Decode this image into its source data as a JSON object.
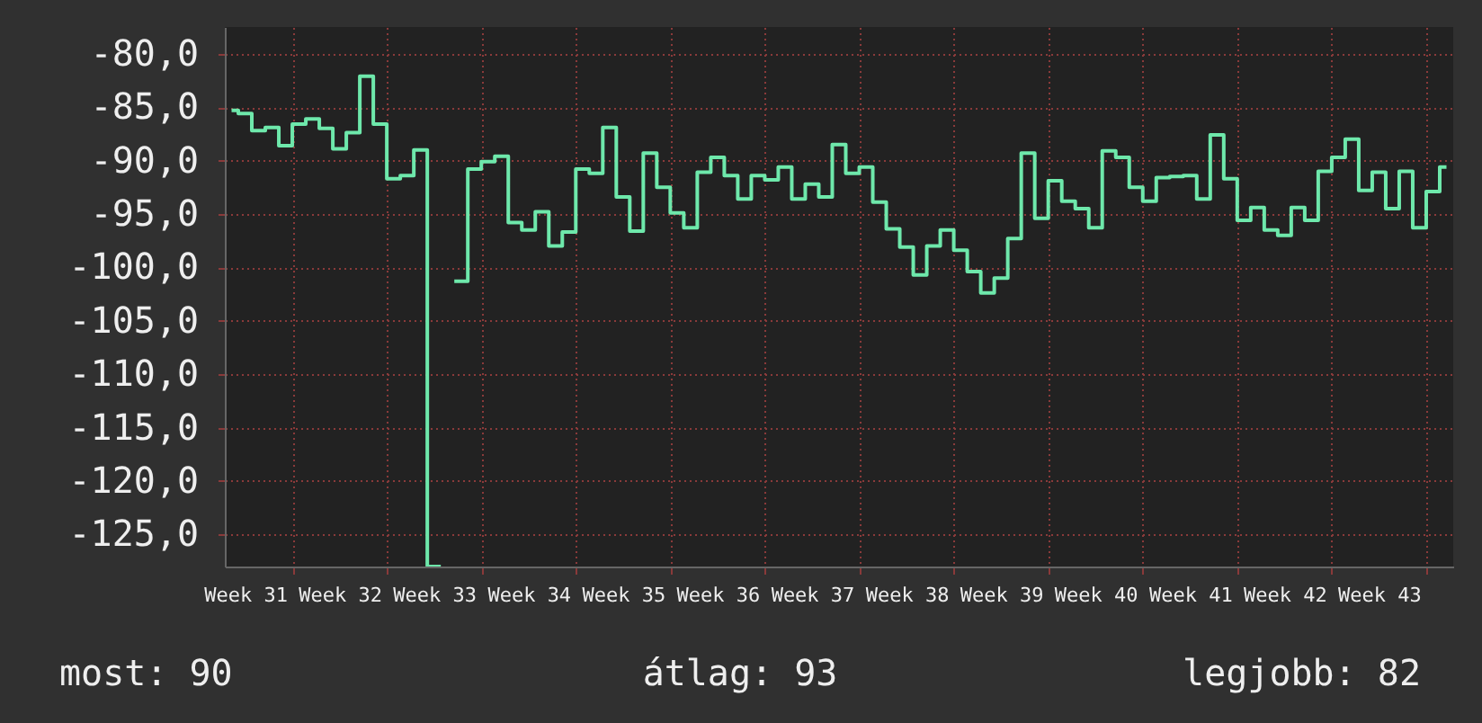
{
  "chart_data": {
    "type": "step",
    "categories": [
      null,
      "Week 31",
      null,
      null,
      null,
      null,
      null,
      null,
      "Week 32",
      null,
      null,
      null,
      null,
      null,
      null,
      "Week 33",
      null,
      null,
      null,
      null,
      null,
      null,
      "Week 34",
      null,
      null,
      null,
      null,
      null,
      null,
      "Week 35",
      null,
      null,
      null,
      null,
      null,
      null,
      "Week 36",
      null,
      null,
      null,
      null,
      null,
      null,
      "Week 37",
      null,
      null,
      null,
      null,
      null,
      null,
      "Week 38",
      null,
      null,
      null,
      null,
      null,
      null,
      "Week 39",
      null,
      null,
      null,
      null,
      null,
      null,
      "Week 40",
      null,
      null,
      null,
      null,
      null,
      null,
      "Week 41",
      null,
      null,
      null,
      null,
      null,
      null,
      "Week 42",
      null,
      null,
      null,
      null,
      null,
      null,
      "Week 43",
      null,
      null,
      null,
      null,
      null
    ],
    "series": [
      {
        "color": "#6ee8ab",
        "values": [
          -85.3,
          -85.6,
          -87.2,
          -86.9,
          -88.6,
          -86.6,
          -86.1,
          -87.0,
          -88.9,
          -87.4,
          -82.1,
          -86.6,
          -91.7,
          -91.4,
          -89.0,
          -128,
          null,
          -101.3,
          -90.8,
          -90.1,
          -89.6,
          -95.8,
          -96.5,
          -94.8,
          -98.0,
          -96.7,
          -90.8,
          -91.2,
          -86.9,
          -93.4,
          -96.6,
          -89.3,
          -92.5,
          -94.9,
          -96.3,
          -91.1,
          -89.7,
          -91.4,
          -93.6,
          -91.4,
          -91.8,
          -90.6,
          -93.6,
          -92.2,
          -93.4,
          -88.5,
          -91.2,
          -90.6,
          -93.9,
          -96.4,
          -98.1,
          -100.7,
          -98.0,
          -96.5,
          -98.4,
          -100.4,
          -102.4,
          -101.0,
          -97.3,
          -89.3,
          -95.4,
          -91.9,
          -93.8,
          -94.5,
          -96.3,
          -89.1,
          -89.7,
          -92.5,
          -93.8,
          -91.6,
          -91.5,
          -91.4,
          -93.6,
          -87.6,
          -91.7,
          -95.6,
          -94.4,
          -96.5,
          -97.0,
          -94.4,
          -95.6,
          -91.0,
          -89.7,
          -88.0,
          -92.8,
          -91.1,
          -94.5,
          -91.0,
          -96.3,
          -92.9,
          -90.6
        ]
      }
    ],
    "ylim": [
      -128,
      -77.5
    ],
    "yticks": [
      {
        "value": -80,
        "label": "-80,0"
      },
      {
        "value": -85,
        "label": "-85,0"
      },
      {
        "value": -90,
        "label": "-90,0"
      },
      {
        "value": -95,
        "label": "-95,0"
      },
      {
        "value": -100,
        "label": "-100,0"
      },
      {
        "value": -105,
        "label": "-105,0"
      },
      {
        "value": -110,
        "label": "-110,0"
      },
      {
        "value": -115,
        "label": "-115,0"
      },
      {
        "value": -120,
        "label": "-120,0"
      },
      {
        "value": -125,
        "label": "-125,0"
      }
    ],
    "grid": true,
    "annotations": [
      "most: 90",
      "átlag: 93",
      "legjobb: 82"
    ]
  }
}
